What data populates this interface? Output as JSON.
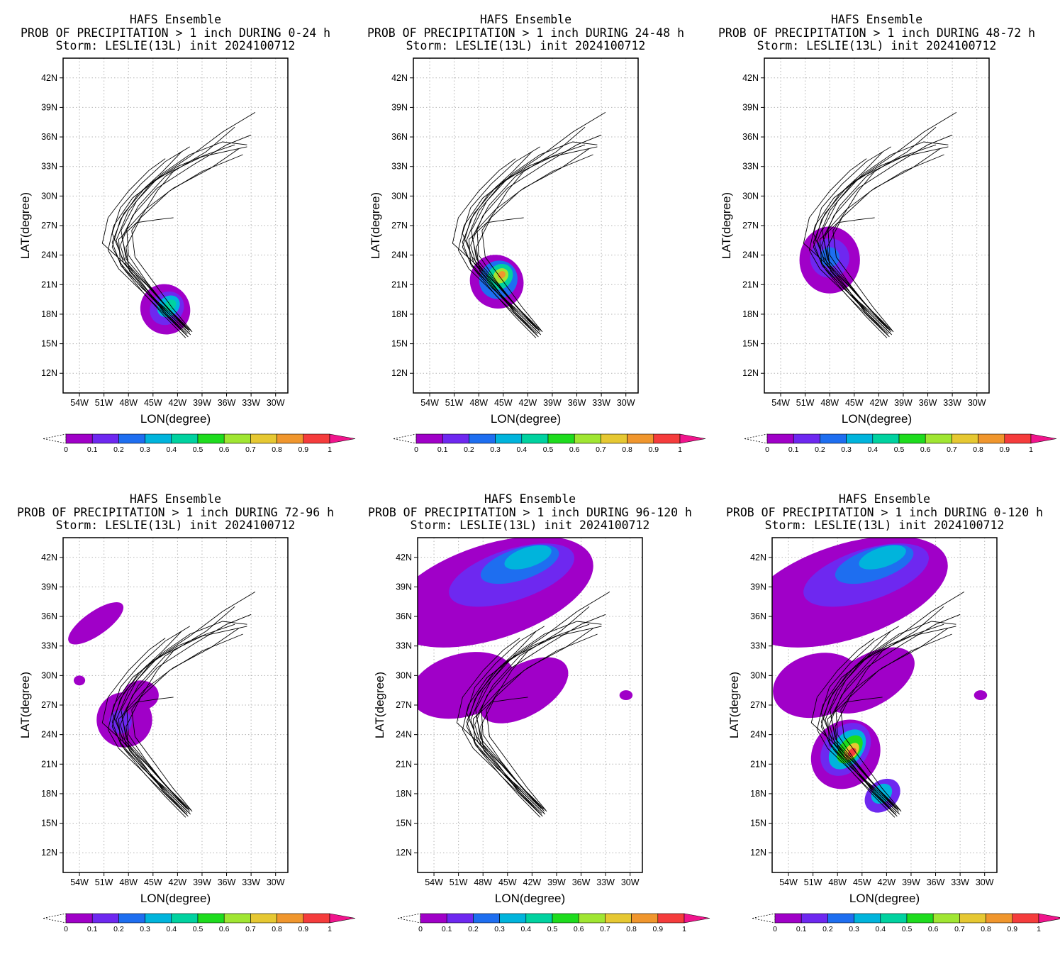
{
  "figure": {
    "model": "HAFS Ensemble",
    "storm_line": "Storm: LESLIE(13L) init 2024100712",
    "axis_labels": {
      "x": "LON(degree)",
      "y": "LAT(degree)"
    },
    "lat_ticks": [
      "12N",
      "15N",
      "18N",
      "21N",
      "24N",
      "27N",
      "30N",
      "33N",
      "36N",
      "39N",
      "42N"
    ],
    "lon_ticks": [
      "54W",
      "51W",
      "48W",
      "45W",
      "42W",
      "39W",
      "36W",
      "33W",
      "30W"
    ],
    "colorbar_ticks": [
      "0",
      "0.1",
      "0.2",
      "0.3",
      "0.4",
      "0.5",
      "0.6",
      "0.7",
      "0.8",
      "0.9",
      "1"
    ],
    "colorbar_colors": [
      "#a000c8",
      "#6e28f0",
      "#1e6ef0",
      "#00b4dc",
      "#00d2a0",
      "#1edc1e",
      "#a0e632",
      "#e6c832",
      "#f0962d",
      "#f53c3c",
      "#f0148c"
    ]
  },
  "panels": [
    {
      "prob_line": "PROB OF PRECIPITATION > 1 inch DURING  0-24 h",
      "blobs": [
        {
          "lon": -43.5,
          "lat": 18.5,
          "rlon": 3.0,
          "rlat": 2.6,
          "rot": -40,
          "color": "#a000c8"
        },
        {
          "lon": -43.3,
          "lat": 18.6,
          "rlon": 2.2,
          "rlat": 1.6,
          "rot": -40,
          "color": "#6e28f0"
        },
        {
          "lon": -43.1,
          "lat": 18.8,
          "rlon": 1.5,
          "rlat": 1.0,
          "rot": -40,
          "color": "#00b4dc"
        },
        {
          "lon": -42.9,
          "lat": 18.9,
          "rlon": 0.8,
          "rlat": 0.5,
          "rot": -40,
          "color": "#00d2a0"
        }
      ]
    },
    {
      "prob_line": "PROB OF PRECIPITATION > 1 inch DURING 24-48 h",
      "blobs": [
        {
          "lon": -45.8,
          "lat": 21.3,
          "rlon": 3.2,
          "rlat": 2.8,
          "rot": -45,
          "color": "#a000c8"
        },
        {
          "lon": -45.6,
          "lat": 21.5,
          "rlon": 2.4,
          "rlat": 1.9,
          "rot": -45,
          "color": "#1e6ef0"
        },
        {
          "lon": -45.4,
          "lat": 21.8,
          "rlon": 1.7,
          "rlat": 1.2,
          "rot": -45,
          "color": "#00d2a0"
        },
        {
          "lon": -45.3,
          "lat": 21.9,
          "rlon": 1.0,
          "rlat": 0.7,
          "rot": -45,
          "color": "#a0e632"
        },
        {
          "lon": -45.2,
          "lat": 22.0,
          "rlon": 0.5,
          "rlat": 0.35,
          "rot": -45,
          "color": "#f0962d"
        }
      ]
    },
    {
      "prob_line": "PROB OF PRECIPITATION > 1 inch DURING 48-72 h",
      "blobs": [
        {
          "lon": -48.0,
          "lat": 23.5,
          "rlon": 3.7,
          "rlat": 3.4,
          "rot": 0,
          "color": "#a000c8"
        },
        {
          "lon": -48.0,
          "lat": 23.7,
          "rlon": 2.4,
          "rlat": 2.0,
          "rot": 0,
          "color": "#6e28f0"
        },
        {
          "lon": -48.0,
          "lat": 23.8,
          "rlon": 1.2,
          "rlat": 1.0,
          "rot": 0,
          "color": "#1e6ef0"
        }
      ]
    },
    {
      "prob_line": "PROB OF PRECIPITATION > 1 inch DURING 72-96 h",
      "blobs": [
        {
          "lon": -48.5,
          "lat": 25.5,
          "rlon": 3.4,
          "rlat": 2.8,
          "rot": 0,
          "color": "#a000c8"
        },
        {
          "lon": -46.5,
          "lat": 28.0,
          "rlon": 2.2,
          "rlat": 1.5,
          "rot": 0,
          "color": "#a000c8"
        },
        {
          "lon": -52.0,
          "lat": 35.3,
          "rlon": 4.0,
          "rlat": 1.2,
          "rot": -35,
          "color": "#a000c8"
        },
        {
          "lon": -49.0,
          "lat": 25.3,
          "rlon": 1.4,
          "rlat": 1.2,
          "rot": 0,
          "color": "#6e28f0"
        },
        {
          "lon": -54.0,
          "lat": 29.5,
          "rlon": 0.7,
          "rlat": 0.5,
          "rot": 0,
          "color": "#a000c8"
        }
      ]
    },
    {
      "prob_line": "PROB OF PRECIPITATION > 1 inch DURING 96-120 h",
      "blobs": [
        {
          "lon": -47.0,
          "lat": 38.5,
          "rlon": 13.0,
          "rlat": 4.8,
          "rot": -18,
          "color": "#a000c8"
        },
        {
          "lon": -50.5,
          "lat": 29.0,
          "rlon": 6.5,
          "rlat": 3.2,
          "rot": -15,
          "color": "#a000c8"
        },
        {
          "lon": -43.0,
          "lat": 28.5,
          "rlon": 6.0,
          "rlat": 2.6,
          "rot": -30,
          "color": "#a000c8"
        },
        {
          "lon": -44.5,
          "lat": 40.2,
          "rlon": 8.0,
          "rlat": 2.6,
          "rot": -18,
          "color": "#6e28f0"
        },
        {
          "lon": -43.5,
          "lat": 41.3,
          "rlon": 5.0,
          "rlat": 1.6,
          "rot": -18,
          "color": "#1e6ef0"
        },
        {
          "lon": -42.5,
          "lat": 42.0,
          "rlon": 3.0,
          "rlat": 1.0,
          "rot": -18,
          "color": "#00b4dc"
        },
        {
          "lon": -30.5,
          "lat": 28.0,
          "rlon": 0.8,
          "rlat": 0.5,
          "rot": 0,
          "color": "#a000c8"
        }
      ]
    },
    {
      "prob_line": "PROB OF PRECIPITATION > 1 inch DURING 0-120 h",
      "blobs": [
        {
          "lon": -47.0,
          "lat": 38.5,
          "rlon": 13.0,
          "rlat": 4.8,
          "rot": -18,
          "color": "#a000c8"
        },
        {
          "lon": -50.5,
          "lat": 29.0,
          "rlon": 5.5,
          "rlat": 3.2,
          "rot": -15,
          "color": "#a000c8"
        },
        {
          "lon": -44.0,
          "lat": 29.5,
          "rlon": 6.0,
          "rlat": 2.6,
          "rot": -30,
          "color": "#a000c8"
        },
        {
          "lon": -47.0,
          "lat": 22.0,
          "rlon": 4.5,
          "rlat": 3.3,
          "rot": -45,
          "color": "#a000c8"
        },
        {
          "lon": -44.5,
          "lat": 40.2,
          "rlon": 8.0,
          "rlat": 2.6,
          "rot": -18,
          "color": "#6e28f0"
        },
        {
          "lon": -43.5,
          "lat": 41.3,
          "rlon": 5.0,
          "rlat": 1.6,
          "rot": -18,
          "color": "#1e6ef0"
        },
        {
          "lon": -42.5,
          "lat": 42.0,
          "rlon": 3.0,
          "rlat": 1.0,
          "rot": -18,
          "color": "#00b4dc"
        },
        {
          "lon": -47.0,
          "lat": 22.5,
          "rlon": 3.6,
          "rlat": 2.2,
          "rot": -50,
          "color": "#6e28f0"
        },
        {
          "lon": -46.8,
          "lat": 22.5,
          "rlon": 2.8,
          "rlat": 1.5,
          "rot": -50,
          "color": "#00b4dc"
        },
        {
          "lon": -46.5,
          "lat": 22.5,
          "rlon": 2.0,
          "rlat": 1.0,
          "rot": -50,
          "color": "#1edc1e"
        },
        {
          "lon": -46.3,
          "lat": 22.3,
          "rlon": 1.2,
          "rlat": 0.6,
          "rot": -50,
          "color": "#e6c832"
        },
        {
          "lon": -46.2,
          "lat": 22.2,
          "rlon": 0.6,
          "rlat": 0.35,
          "rot": -50,
          "color": "#f53c3c"
        },
        {
          "lon": -42.5,
          "lat": 17.8,
          "rlon": 2.4,
          "rlat": 1.5,
          "rot": -40,
          "color": "#6e28f0"
        },
        {
          "lon": -42.6,
          "lat": 18.0,
          "rlon": 1.4,
          "rlat": 0.9,
          "rot": -40,
          "color": "#00b4dc"
        },
        {
          "lon": -30.5,
          "lat": 28.0,
          "rlon": 0.8,
          "rlat": 0.5,
          "rot": 0,
          "color": "#a000c8"
        }
      ]
    }
  ],
  "tracks": [
    [
      [
        -40.5,
        16.0
      ],
      [
        -43.0,
        18.0
      ],
      [
        -45.5,
        20.2
      ],
      [
        -48.2,
        22.8
      ],
      [
        -49.0,
        25.0
      ],
      [
        -47.5,
        28.0
      ],
      [
        -44.5,
        30.8
      ],
      [
        -40.0,
        33.2
      ],
      [
        -36.0,
        35.2
      ],
      [
        -33.0,
        36.2
      ]
    ],
    [
      [
        -40.8,
        15.8
      ],
      [
        -43.3,
        18.0
      ],
      [
        -45.8,
        20.5
      ],
      [
        -48.6,
        23.2
      ],
      [
        -49.5,
        25.5
      ],
      [
        -48.0,
        28.5
      ],
      [
        -45.0,
        31.5
      ],
      [
        -40.5,
        34.0
      ],
      [
        -36.5,
        36.5
      ],
      [
        -32.5,
        38.5
      ]
    ],
    [
      [
        -40.2,
        16.2
      ],
      [
        -42.8,
        18.3
      ],
      [
        -45.3,
        20.6
      ],
      [
        -48.0,
        23.0
      ],
      [
        -48.8,
        25.8
      ],
      [
        -46.8,
        29.0
      ],
      [
        -43.5,
        32.0
      ],
      [
        -38.5,
        34.5
      ],
      [
        -35.0,
        37.0
      ]
    ],
    [
      [
        -41.0,
        15.6
      ],
      [
        -43.6,
        17.8
      ],
      [
        -46.2,
        20.2
      ],
      [
        -49.2,
        22.6
      ],
      [
        -50.5,
        24.5
      ],
      [
        -49.8,
        27.0
      ],
      [
        -47.5,
        29.8
      ],
      [
        -44.0,
        32.0
      ],
      [
        -39.0,
        34.0
      ],
      [
        -33.5,
        35.0
      ]
    ],
    [
      [
        -40.6,
        16.4
      ],
      [
        -43.1,
        18.5
      ],
      [
        -45.6,
        21.0
      ],
      [
        -48.3,
        23.6
      ],
      [
        -48.9,
        26.5
      ],
      [
        -47.0,
        29.5
      ],
      [
        -44.0,
        32.2
      ],
      [
        -40.5,
        34.2
      ],
      [
        -36.5,
        35.5
      ],
      [
        -33.5,
        35.2
      ]
    ],
    [
      [
        -40.4,
        15.9
      ],
      [
        -42.9,
        17.9
      ],
      [
        -45.5,
        20.0
      ],
      [
        -47.9,
        22.4
      ],
      [
        -48.3,
        24.8
      ],
      [
        -46.5,
        27.8
      ],
      [
        -43.0,
        30.5
      ],
      [
        -39.0,
        32.5
      ],
      [
        -34.0,
        34.2
      ]
    ],
    [
      [
        -41.2,
        16.1
      ],
      [
        -43.7,
        18.2
      ],
      [
        -46.0,
        20.8
      ],
      [
        -48.8,
        23.8
      ],
      [
        -50.0,
        26.2
      ],
      [
        -49.0,
        28.8
      ],
      [
        -46.5,
        31.2
      ],
      [
        -43.5,
        33.5
      ],
      [
        -40.5,
        35.0
      ]
    ],
    [
      [
        -40.9,
        16.5
      ],
      [
        -43.4,
        18.8
      ],
      [
        -45.8,
        21.3
      ],
      [
        -48.0,
        24.0
      ],
      [
        -48.2,
        26.6
      ],
      [
        -46.0,
        28.6
      ],
      [
        -42.5,
        30.8
      ],
      [
        -38.0,
        32.8
      ],
      [
        -34.5,
        34.8
      ]
    ],
    [
      [
        -40.3,
        16.3
      ],
      [
        -42.6,
        18.6
      ],
      [
        -44.8,
        21.1
      ],
      [
        -47.2,
        23.8
      ],
      [
        -47.6,
        26.5
      ],
      [
        -46.0,
        28.5
      ],
      [
        -44.5,
        30.5
      ],
      [
        -42.5,
        32.5
      ],
      [
        -40.5,
        33.5
      ]
    ],
    [
      [
        -40.7,
        15.7
      ],
      [
        -43.2,
        17.7
      ],
      [
        -45.9,
        19.9
      ],
      [
        -48.5,
        22.5
      ],
      [
        -50.0,
        24.8
      ],
      [
        -49.0,
        27.6
      ],
      [
        -46.8,
        30.2
      ],
      [
        -43.8,
        32.5
      ],
      [
        -41.5,
        34.5
      ]
    ],
    [
      [
        -41.0,
        16.6
      ],
      [
        -43.5,
        18.6
      ],
      [
        -46.3,
        20.6
      ],
      [
        -49.0,
        23.2
      ],
      [
        -49.2,
        25.6
      ],
      [
        -47.0,
        27.3
      ],
      [
        -44.5,
        27.6
      ],
      [
        -42.5,
        27.8
      ]
    ],
    [
      [
        -40.5,
        16.2
      ],
      [
        -43.0,
        18.4
      ],
      [
        -45.7,
        20.9
      ],
      [
        -48.8,
        23.4
      ],
      [
        -51.2,
        25.2
      ],
      [
        -50.5,
        27.8
      ],
      [
        -48.0,
        30.5
      ],
      [
        -45.5,
        32.6
      ],
      [
        -43.5,
        33.8
      ]
    ],
    [
      [
        -40.8,
        16.0
      ],
      [
        -43.4,
        18.1
      ],
      [
        -46.0,
        20.4
      ],
      [
        -48.9,
        22.9
      ],
      [
        -50.0,
        25.3
      ],
      [
        -48.6,
        28.2
      ],
      [
        -45.8,
        31.0
      ],
      [
        -42.0,
        33.0
      ],
      [
        -38.5,
        34.2
      ],
      [
        -35.0,
        35.2
      ]
    ]
  ]
}
